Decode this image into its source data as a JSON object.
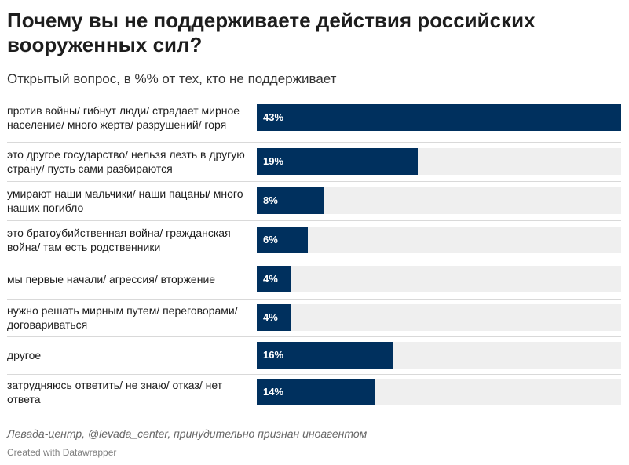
{
  "title": "Почему вы не поддерживаете действия российских вооруженных сил?",
  "subtitle": "Открытый вопрос, в %% от тех, кто не поддерживает",
  "chart_data": {
    "type": "bar",
    "orientation": "horizontal",
    "categories": [
      "против войны/ гибнут люди/ страдает мирное население/ много жертв/ разрушений/ горя",
      "это другое государство/ нельзя лезть в другую страну/ пусть сами разбираются",
      "умирают наши мальчики/ наши пацаны/ много наших погибло",
      "это братоубийственная война/ гражданская война/ там есть родственники",
      "мы первые начали/ агрессия/ вторжение",
      "нужно решать мирным путем/ переговорами/ договариваться",
      "другое",
      "затрудняюсь ответить/ не знаю/ отказ/ нет ответа"
    ],
    "values": [
      43,
      19,
      8,
      6,
      4,
      4,
      16,
      14
    ],
    "value_labels": [
      "43%",
      "19%",
      "8%",
      "6%",
      "4%",
      "4%",
      "16%",
      "14%"
    ],
    "xlim": [
      0,
      43
    ],
    "bar_color": "#00305e",
    "track_color": "#efefef"
  },
  "source": "Левада-центр, @levada_center, принудительно признан иноагентом",
  "credit": "Created with Datawrapper"
}
